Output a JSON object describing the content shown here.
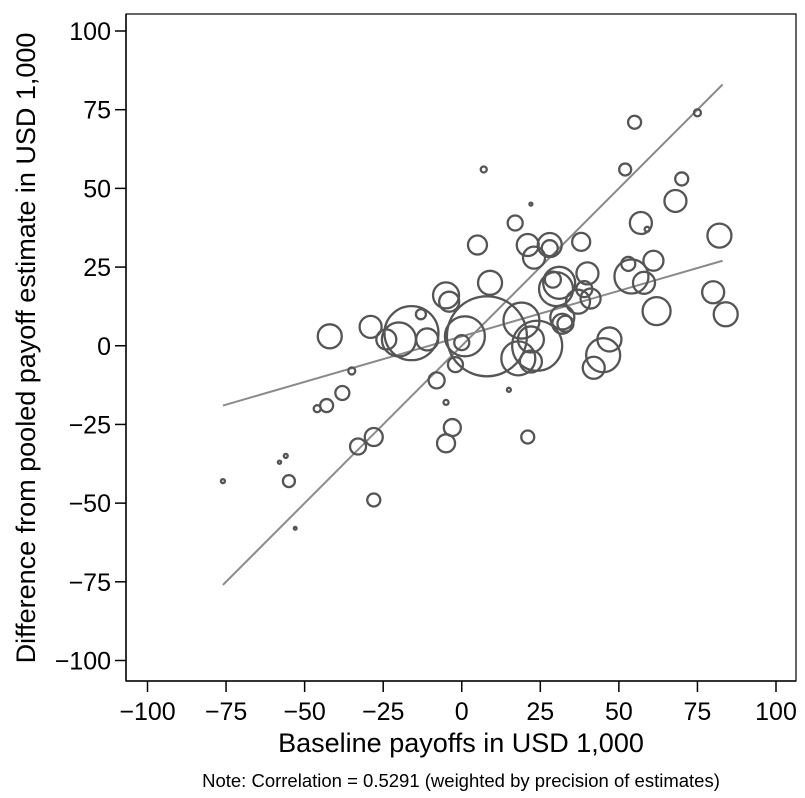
{
  "chart_data": {
    "type": "scatter",
    "title": "",
    "xlabel": "Baseline payoffs in USD 1,000",
    "ylabel": "Difference from pooled payoff estimate in USD 1,000",
    "note": "Note: Correlation = 0.5291 (weighted by precision of estimates)",
    "xlim": [
      -105,
      105
    ],
    "ylim": [
      -105,
      105
    ],
    "xticks": [
      -100,
      -75,
      -50,
      -25,
      0,
      25,
      50,
      75,
      100
    ],
    "yticks": [
      -100,
      -75,
      -50,
      -25,
      0,
      25,
      50,
      75,
      100
    ],
    "xtick_labels": [
      "−100",
      "−75",
      "−50",
      "−25",
      "0",
      "25",
      "50",
      "75",
      "100"
    ],
    "ytick_labels": [
      "−100",
      "−75",
      "−50",
      "−25",
      "0",
      "25",
      "50",
      "75",
      "100"
    ],
    "grid": false,
    "legend": false,
    "marker_color": "#555555",
    "line_color": "#8a8a8a",
    "points": [
      {
        "x": -76,
        "y": -43,
        "weight": 2
      },
      {
        "x": -58,
        "y": -37,
        "weight": 1.6
      },
      {
        "x": -56,
        "y": -35,
        "weight": 2
      },
      {
        "x": -55,
        "y": -43,
        "weight": 6
      },
      {
        "x": -53,
        "y": -58,
        "weight": 1.4
      },
      {
        "x": -46,
        "y": -20,
        "weight": 3.5
      },
      {
        "x": -43,
        "y": -19,
        "weight": 6.5
      },
      {
        "x": -42,
        "y": 3,
        "weight": 12
      },
      {
        "x": -38,
        "y": -15,
        "weight": 7
      },
      {
        "x": -35,
        "y": -8,
        "weight": 3.5
      },
      {
        "x": -33,
        "y": -32,
        "weight": 8
      },
      {
        "x": -28,
        "y": -49,
        "weight": 6.5
      },
      {
        "x": -28,
        "y": -29,
        "weight": 9
      },
      {
        "x": -29,
        "y": 6,
        "weight": 11
      },
      {
        "x": -24,
        "y": 2,
        "weight": 10
      },
      {
        "x": -20,
        "y": 2,
        "weight": 17
      },
      {
        "x": -16,
        "y": 4,
        "weight": 27
      },
      {
        "x": -13,
        "y": 10,
        "weight": 5
      },
      {
        "x": -11,
        "y": 2,
        "weight": 11
      },
      {
        "x": -8,
        "y": -11,
        "weight": 8
      },
      {
        "x": -5,
        "y": 16,
        "weight": 13
      },
      {
        "x": -5,
        "y": -18,
        "weight": 2.5
      },
      {
        "x": -5,
        "y": -31,
        "weight": 9
      },
      {
        "x": -4,
        "y": 14,
        "weight": 10
      },
      {
        "x": -3,
        "y": -26,
        "weight": 8.5
      },
      {
        "x": -2,
        "y": -6,
        "weight": 7.5
      },
      {
        "x": 0,
        "y": 1,
        "weight": 7.5
      },
      {
        "x": 1,
        "y": 3,
        "weight": 20
      },
      {
        "x": 5,
        "y": 32,
        "weight": 9.5
      },
      {
        "x": 7,
        "y": 56,
        "weight": 3
      },
      {
        "x": 8,
        "y": 3,
        "weight": 40
      },
      {
        "x": 9,
        "y": 20,
        "weight": 12
      },
      {
        "x": 15,
        "y": -14,
        "weight": 2
      },
      {
        "x": 17,
        "y": 39,
        "weight": 7.5
      },
      {
        "x": 18,
        "y": -4,
        "weight": 17
      },
      {
        "x": 19,
        "y": 8,
        "weight": 18
      },
      {
        "x": 21,
        "y": 32,
        "weight": 11
      },
      {
        "x": 21,
        "y": -29,
        "weight": 6.5
      },
      {
        "x": 22,
        "y": -5,
        "weight": 11
      },
      {
        "x": 22,
        "y": 2,
        "weight": 13
      },
      {
        "x": 22,
        "y": 45,
        "weight": 1.5
      },
      {
        "x": 23,
        "y": 28,
        "weight": 11
      },
      {
        "x": 24,
        "y": 0,
        "weight": 25
      },
      {
        "x": 28,
        "y": 32,
        "weight": 12
      },
      {
        "x": 28,
        "y": 31,
        "weight": 8
      },
      {
        "x": 29,
        "y": 21,
        "weight": 8
      },
      {
        "x": 30,
        "y": 18,
        "weight": 17
      },
      {
        "x": 31,
        "y": 20,
        "weight": 16
      },
      {
        "x": 32,
        "y": 9,
        "weight": 12
      },
      {
        "x": 32,
        "y": 7,
        "weight": 10
      },
      {
        "x": 33,
        "y": 7,
        "weight": 8
      },
      {
        "x": 37,
        "y": 14,
        "weight": 12
      },
      {
        "x": 38,
        "y": 33,
        "weight": 9
      },
      {
        "x": 39,
        "y": 18,
        "weight": 8
      },
      {
        "x": 40,
        "y": 23,
        "weight": 11
      },
      {
        "x": 41,
        "y": 15,
        "weight": 10
      },
      {
        "x": 42,
        "y": -7,
        "weight": 11
      },
      {
        "x": 45,
        "y": -3,
        "weight": 17
      },
      {
        "x": 47,
        "y": 2,
        "weight": 12
      },
      {
        "x": 52,
        "y": 56,
        "weight": 6
      },
      {
        "x": 53,
        "y": 26,
        "weight": 7
      },
      {
        "x": 54,
        "y": 22,
        "weight": 17
      },
      {
        "x": 55,
        "y": 71,
        "weight": 6.5
      },
      {
        "x": 57,
        "y": 39,
        "weight": 11
      },
      {
        "x": 58,
        "y": 20,
        "weight": 11
      },
      {
        "x": 59,
        "y": 37,
        "weight": 2.5
      },
      {
        "x": 61,
        "y": 27,
        "weight": 10
      },
      {
        "x": 62,
        "y": 11,
        "weight": 14
      },
      {
        "x": 68,
        "y": 46,
        "weight": 11
      },
      {
        "x": 70,
        "y": 53,
        "weight": 6.5
      },
      {
        "x": 75,
        "y": 74,
        "weight": 3.5
      },
      {
        "x": 80,
        "y": 17,
        "weight": 11
      },
      {
        "x": 82,
        "y": 35,
        "weight": 12
      },
      {
        "x": 84,
        "y": 10,
        "weight": 12
      }
    ],
    "lines": [
      {
        "kind": "identity",
        "x": [
          -76,
          83
        ],
        "y": [
          -76,
          83
        ]
      },
      {
        "kind": "fit",
        "x": [
          -76,
          83
        ],
        "y": [
          -19,
          27
        ]
      }
    ]
  }
}
